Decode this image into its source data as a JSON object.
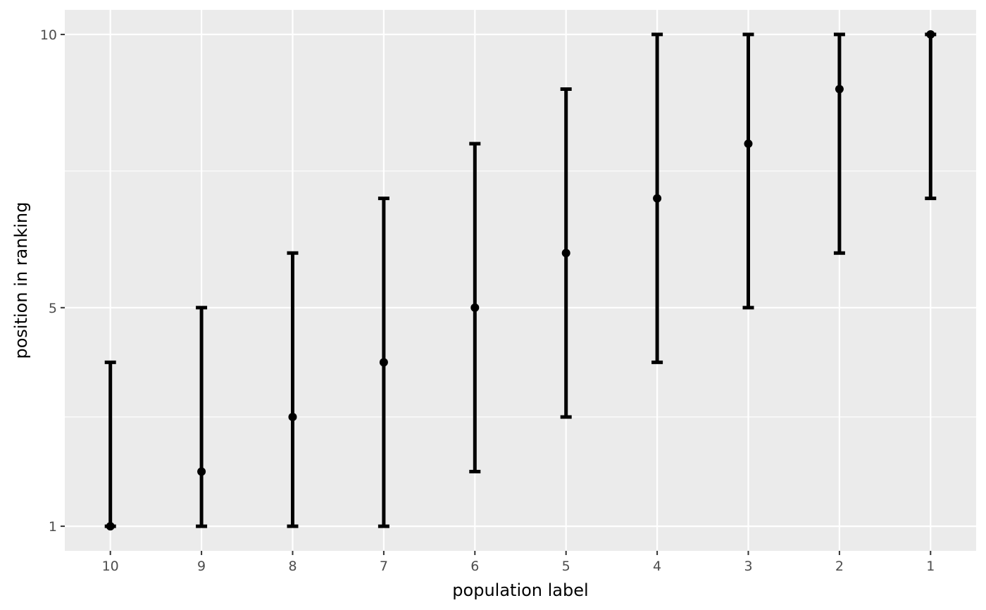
{
  "chart_data": {
    "type": "errorbar",
    "xlabel": "population label",
    "ylabel": "position in ranking",
    "categories": [
      "10",
      "9",
      "8",
      "7",
      "6",
      "5",
      "4",
      "3",
      "2",
      "1"
    ],
    "points": [
      {
        "label": "10",
        "y": 1,
        "lower": 1,
        "upper": 4
      },
      {
        "label": "9",
        "y": 2,
        "lower": 1,
        "upper": 5
      },
      {
        "label": "8",
        "y": 3,
        "lower": 1,
        "upper": 6
      },
      {
        "label": "7",
        "y": 4,
        "lower": 1,
        "upper": 7
      },
      {
        "label": "6",
        "y": 5,
        "lower": 2,
        "upper": 8
      },
      {
        "label": "5",
        "y": 6,
        "lower": 3,
        "upper": 9
      },
      {
        "label": "4",
        "y": 7,
        "lower": 4,
        "upper": 10
      },
      {
        "label": "3",
        "y": 8,
        "lower": 5,
        "upper": 10
      },
      {
        "label": "2",
        "y": 9,
        "lower": 6,
        "upper": 10
      },
      {
        "label": "1",
        "y": 10,
        "lower": 7,
        "upper": 10
      }
    ],
    "y_ticks": [
      1,
      5,
      10
    ],
    "y_minor_ticks": [
      3,
      7.5
    ],
    "ylim": [
      0.55,
      10.45
    ],
    "grid": true,
    "colors": {
      "panel": "#ebebeb",
      "grid": "#ffffff",
      "marks": "#000000",
      "tick_text": "#4d4d4d"
    }
  }
}
